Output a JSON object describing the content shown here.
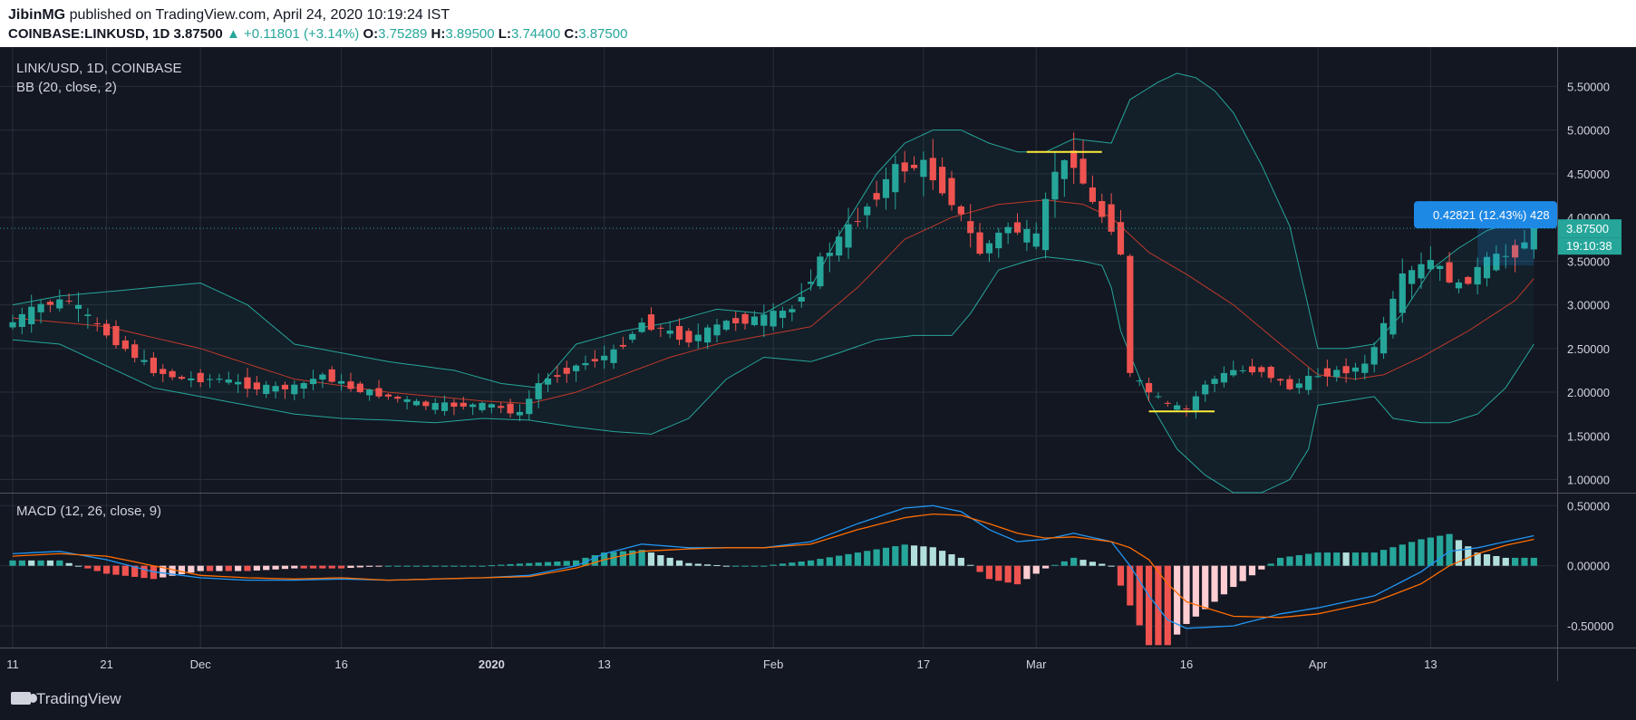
{
  "header": {
    "author": "JibinMG",
    "published_text": "published on TradingView.com, April 24, 2020 10:19:24 IST",
    "symbol": "COINBASE:LINKUSD, 1D",
    "last": "3.87500",
    "change": "+0.11801 (+3.14%)",
    "open_label": "O:",
    "open": "3.75289",
    "high_label": "H:",
    "high": "3.89500",
    "low_label": "L:",
    "low": "3.74400",
    "close_label": "C:",
    "close": "3.87500"
  },
  "footer": {
    "brand": "TradingView"
  },
  "colors": {
    "bg": "#131722",
    "grid": "#2a2e39",
    "up": "#26a69a",
    "down": "#ef5350",
    "bb_band": "#26a69a",
    "bb_basis": "#c0392b",
    "macd": "#2196f3",
    "signal": "#ff6d00",
    "hist_up_strong": "#26a69a",
    "hist_up_weak": "#b2dfdb",
    "hist_down_strong": "#ef5350",
    "hist_down_weak": "#ffcdd2",
    "annotation": "#ffeb3b",
    "measure": "#1e88e5"
  },
  "chart_data": [
    {
      "type": "candlestick",
      "title": "LINK/USD, 1D, COINBASE",
      "indicator": "BB (20, close, 2)",
      "ylim": [
        0.85,
        5.95
      ],
      "y_ticks": [
        "1.00000",
        "1.50000",
        "2.00000",
        "2.50000",
        "3.00000",
        "3.50000",
        "4.00000",
        "4.50000",
        "5.00000",
        "5.50000"
      ],
      "y_tick_values": [
        1.0,
        1.5,
        2.0,
        2.5,
        3.0,
        3.5,
        4.0,
        4.5,
        5.0,
        5.5
      ],
      "x_ticks": [
        "11",
        "21",
        "Dec",
        "16",
        "2020",
        "13",
        "Feb",
        "17",
        "Mar",
        "16",
        "Apr",
        "13"
      ],
      "x_tick_days": [
        0,
        10,
        20,
        35,
        51,
        63,
        81,
        97,
        109,
        125,
        139,
        151
      ],
      "last_price_label": "3.87500",
      "countdown_label": "19:10:38",
      "measure_label": "0.42821 (12.43%) 428",
      "bb_upper_key": [
        [
          0,
          3.0
        ],
        [
          5,
          3.1
        ],
        [
          10,
          3.15
        ],
        [
          15,
          3.2
        ],
        [
          20,
          3.25
        ],
        [
          25,
          3.0
        ],
        [
          30,
          2.55
        ],
        [
          40,
          2.35
        ],
        [
          47,
          2.25
        ],
        [
          52,
          2.1
        ],
        [
          56,
          2.05
        ],
        [
          60,
          2.55
        ],
        [
          65,
          2.7
        ],
        [
          70,
          2.8
        ],
        [
          75,
          2.95
        ],
        [
          80,
          2.9
        ],
        [
          85,
          3.2
        ],
        [
          88,
          3.8
        ],
        [
          92,
          4.5
        ],
        [
          95,
          4.85
        ],
        [
          98,
          5.0
        ],
        [
          101,
          5.0
        ],
        [
          104,
          4.85
        ],
        [
          107,
          4.75
        ],
        [
          110,
          4.75
        ],
        [
          113,
          4.9
        ],
        [
          117,
          4.85
        ],
        [
          119,
          5.35
        ],
        [
          122,
          5.55
        ],
        [
          124,
          5.65
        ],
        [
          126,
          5.6
        ],
        [
          128,
          5.45
        ],
        [
          130,
          5.2
        ],
        [
          133,
          4.6
        ],
        [
          136,
          3.9
        ],
        [
          139,
          2.5
        ],
        [
          142,
          2.5
        ],
        [
          145,
          2.55
        ],
        [
          148,
          2.9
        ],
        [
          151,
          3.4
        ],
        [
          154,
          3.65
        ],
        [
          157,
          3.85
        ],
        [
          160,
          3.95
        ],
        [
          162,
          3.95
        ]
      ],
      "bb_basis_key": [
        [
          0,
          2.85
        ],
        [
          5,
          2.8
        ],
        [
          10,
          2.75
        ],
        [
          20,
          2.5
        ],
        [
          30,
          2.15
        ],
        [
          40,
          2.0
        ],
        [
          50,
          1.9
        ],
        [
          55,
          1.87
        ],
        [
          60,
          2.0
        ],
        [
          65,
          2.2
        ],
        [
          70,
          2.4
        ],
        [
          75,
          2.55
        ],
        [
          80,
          2.65
        ],
        [
          85,
          2.75
        ],
        [
          90,
          3.2
        ],
        [
          95,
          3.75
        ],
        [
          100,
          4.0
        ],
        [
          105,
          4.15
        ],
        [
          110,
          4.2
        ],
        [
          114,
          4.15
        ],
        [
          117,
          4.0
        ],
        [
          121,
          3.6
        ],
        [
          125,
          3.35
        ],
        [
          130,
          3.0
        ],
        [
          135,
          2.55
        ],
        [
          139,
          2.2
        ],
        [
          143,
          2.15
        ],
        [
          146,
          2.2
        ],
        [
          150,
          2.4
        ],
        [
          155,
          2.7
        ],
        [
          160,
          3.05
        ],
        [
          162,
          3.3
        ]
      ],
      "bb_lower_key": [
        [
          0,
          2.6
        ],
        [
          5,
          2.55
        ],
        [
          10,
          2.3
        ],
        [
          15,
          2.05
        ],
        [
          20,
          1.95
        ],
        [
          25,
          1.85
        ],
        [
          30,
          1.75
        ],
        [
          35,
          1.7
        ],
        [
          40,
          1.68
        ],
        [
          45,
          1.65
        ],
        [
          50,
          1.7
        ],
        [
          55,
          1.68
        ],
        [
          60,
          1.6
        ],
        [
          64,
          1.55
        ],
        [
          68,
          1.52
        ],
        [
          72,
          1.7
        ],
        [
          76,
          2.15
        ],
        [
          80,
          2.4
        ],
        [
          85,
          2.35
        ],
        [
          88,
          2.45
        ],
        [
          92,
          2.6
        ],
        [
          96,
          2.65
        ],
        [
          100,
          2.65
        ],
        [
          102,
          2.9
        ],
        [
          105,
          3.4
        ],
        [
          108,
          3.5
        ],
        [
          110,
          3.55
        ],
        [
          114,
          3.5
        ],
        [
          116,
          3.45
        ],
        [
          117,
          3.2
        ],
        [
          118,
          2.7
        ],
        [
          121,
          1.9
        ],
        [
          124,
          1.35
        ],
        [
          127,
          1.05
        ],
        [
          130,
          0.85
        ],
        [
          133,
          0.85
        ],
        [
          136,
          1.0
        ],
        [
          138,
          1.35
        ],
        [
          139,
          1.85
        ],
        [
          142,
          1.9
        ],
        [
          145,
          1.95
        ],
        [
          147,
          1.7
        ],
        [
          150,
          1.65
        ],
        [
          153,
          1.65
        ],
        [
          156,
          1.75
        ],
        [
          159,
          2.05
        ],
        [
          162,
          2.55
        ]
      ],
      "close_key": [
        [
          0,
          2.8
        ],
        [
          3,
          3.0
        ],
        [
          6,
          3.05
        ],
        [
          9,
          2.75
        ],
        [
          12,
          2.5
        ],
        [
          15,
          2.25
        ],
        [
          18,
          2.15
        ],
        [
          22,
          2.15
        ],
        [
          26,
          2.05
        ],
        [
          30,
          2.05
        ],
        [
          33,
          2.2
        ],
        [
          36,
          2.05
        ],
        [
          40,
          1.95
        ],
        [
          44,
          1.85
        ],
        [
          47,
          1.85
        ],
        [
          51,
          1.85
        ],
        [
          54,
          1.75
        ],
        [
          56,
          2.1
        ],
        [
          60,
          2.3
        ],
        [
          64,
          2.45
        ],
        [
          67,
          2.8
        ],
        [
          72,
          2.6
        ],
        [
          76,
          2.8
        ],
        [
          80,
          2.85
        ],
        [
          83,
          2.95
        ],
        [
          86,
          3.5
        ],
        [
          90,
          4.0
        ],
        [
          94,
          4.55
        ],
        [
          97,
          4.6
        ],
        [
          100,
          4.2
        ],
        [
          103,
          3.6
        ],
        [
          106,
          3.9
        ],
        [
          109,
          3.75
        ],
        [
          111,
          4.55
        ],
        [
          113,
          4.65
        ],
        [
          115,
          4.15
        ],
        [
          117,
          3.9
        ],
        [
          118,
          3.6
        ],
        [
          119,
          2.2
        ],
        [
          121,
          2.0
        ],
        [
          123,
          1.85
        ],
        [
          125,
          1.8
        ],
        [
          127,
          2.1
        ],
        [
          130,
          2.25
        ],
        [
          133,
          2.25
        ],
        [
          136,
          2.05
        ],
        [
          139,
          2.2
        ],
        [
          142,
          2.25
        ],
        [
          144,
          2.3
        ],
        [
          146,
          2.75
        ],
        [
          148,
          3.3
        ],
        [
          151,
          3.5
        ],
        [
          154,
          3.2
        ],
        [
          157,
          3.5
        ],
        [
          160,
          3.6
        ],
        [
          162,
          3.875
        ]
      ],
      "annotations": [
        {
          "type": "hline",
          "x0": 108,
          "x1": 116,
          "y": 4.75
        },
        {
          "type": "hline",
          "x0": 121,
          "x1": 128,
          "y": 1.78
        }
      ]
    },
    {
      "type": "bar+line",
      "title": "MACD (12, 26, close, 9)",
      "ylim": [
        -0.68,
        0.6
      ],
      "y_ticks": [
        "-0.50000",
        "0.00000",
        "0.50000"
      ],
      "y_tick_values": [
        -0.5,
        0.0,
        0.5
      ],
      "macd_key": [
        [
          0,
          0.1
        ],
        [
          5,
          0.12
        ],
        [
          10,
          0.05
        ],
        [
          15,
          -0.05
        ],
        [
          20,
          -0.1
        ],
        [
          25,
          -0.12
        ],
        [
          30,
          -0.12
        ],
        [
          35,
          -0.11
        ],
        [
          40,
          -0.12
        ],
        [
          45,
          -0.11
        ],
        [
          50,
          -0.1
        ],
        [
          55,
          -0.08
        ],
        [
          60,
          0.0
        ],
        [
          63,
          0.1
        ],
        [
          67,
          0.18
        ],
        [
          72,
          0.15
        ],
        [
          76,
          0.15
        ],
        [
          80,
          0.15
        ],
        [
          85,
          0.2
        ],
        [
          90,
          0.35
        ],
        [
          95,
          0.48
        ],
        [
          98,
          0.5
        ],
        [
          101,
          0.45
        ],
        [
          104,
          0.3
        ],
        [
          107,
          0.2
        ],
        [
          110,
          0.22
        ],
        [
          113,
          0.27
        ],
        [
          117,
          0.2
        ],
        [
          119,
          0.0
        ],
        [
          121,
          -0.25
        ],
        [
          123,
          -0.45
        ],
        [
          125,
          -0.52
        ],
        [
          130,
          -0.5
        ],
        [
          135,
          -0.4
        ],
        [
          139,
          -0.35
        ],
        [
          145,
          -0.25
        ],
        [
          150,
          -0.05
        ],
        [
          153,
          0.12
        ],
        [
          156,
          0.15
        ],
        [
          159,
          0.2
        ],
        [
          162,
          0.25
        ]
      ],
      "signal_key": [
        [
          0,
          0.08
        ],
        [
          5,
          0.1
        ],
        [
          10,
          0.08
        ],
        [
          15,
          0.0
        ],
        [
          20,
          -0.08
        ],
        [
          25,
          -0.1
        ],
        [
          30,
          -0.11
        ],
        [
          35,
          -0.1
        ],
        [
          40,
          -0.12
        ],
        [
          45,
          -0.11
        ],
        [
          50,
          -0.1
        ],
        [
          55,
          -0.09
        ],
        [
          60,
          -0.02
        ],
        [
          63,
          0.05
        ],
        [
          67,
          0.12
        ],
        [
          72,
          0.14
        ],
        [
          76,
          0.15
        ],
        [
          80,
          0.15
        ],
        [
          85,
          0.18
        ],
        [
          90,
          0.3
        ],
        [
          95,
          0.4
        ],
        [
          98,
          0.43
        ],
        [
          101,
          0.42
        ],
        [
          104,
          0.35
        ],
        [
          107,
          0.27
        ],
        [
          110,
          0.23
        ],
        [
          113,
          0.24
        ],
        [
          117,
          0.2
        ],
        [
          119,
          0.15
        ],
        [
          121,
          0.05
        ],
        [
          123,
          -0.15
        ],
        [
          125,
          -0.3
        ],
        [
          130,
          -0.42
        ],
        [
          135,
          -0.43
        ],
        [
          139,
          -0.4
        ],
        [
          145,
          -0.3
        ],
        [
          150,
          -0.15
        ],
        [
          153,
          0.0
        ],
        [
          156,
          0.1
        ],
        [
          159,
          0.17
        ],
        [
          162,
          0.22
        ]
      ]
    }
  ]
}
